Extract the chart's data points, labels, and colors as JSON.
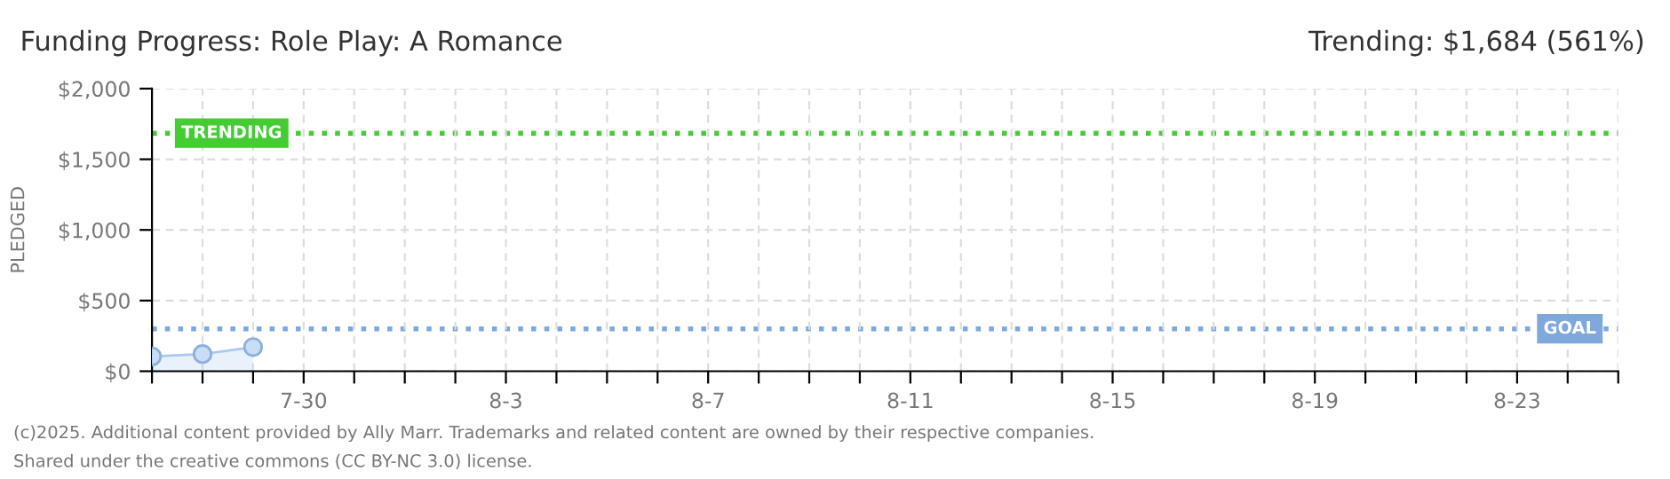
{
  "chart_data": {
    "type": "area",
    "title": "Funding Progress: Role Play: A Romance",
    "subtitle": "Trending: $1,684 (561%)",
    "ylabel": "PLEDGED",
    "x": [
      "2025-07-27",
      "2025-07-28",
      "2025-07-29"
    ],
    "series": [
      {
        "color": "#a9c9ee",
        "values": [
          104,
          121,
          171
        ]
      }
    ],
    "marker": "circle",
    "grid": true,
    "legend": false,
    "xlim": [
      "2025-07-27",
      "2025-08-25"
    ],
    "xticks": [
      {
        "value": "2025-07-27",
        "label": null
      },
      {
        "value": "2025-07-28",
        "label": null
      },
      {
        "value": "2025-07-29",
        "label": null
      },
      {
        "value": "2025-07-30",
        "label": "7-30"
      },
      {
        "value": "2025-07-31",
        "label": null
      },
      {
        "value": "2025-08-01",
        "label": null
      },
      {
        "value": "2025-08-02",
        "label": null
      },
      {
        "value": "2025-08-03",
        "label": "8-3"
      },
      {
        "value": "2025-08-04",
        "label": null
      },
      {
        "value": "2025-08-05",
        "label": null
      },
      {
        "value": "2025-08-06",
        "label": null
      },
      {
        "value": "2025-08-07",
        "label": "8-7"
      },
      {
        "value": "2025-08-08",
        "label": null
      },
      {
        "value": "2025-08-09",
        "label": null
      },
      {
        "value": "2025-08-10",
        "label": null
      },
      {
        "value": "2025-08-11",
        "label": "8-11"
      },
      {
        "value": "2025-08-12",
        "label": null
      },
      {
        "value": "2025-08-13",
        "label": null
      },
      {
        "value": "2025-08-14",
        "label": null
      },
      {
        "value": "2025-08-15",
        "label": "8-15"
      },
      {
        "value": "2025-08-16",
        "label": null
      },
      {
        "value": "2025-08-17",
        "label": null
      },
      {
        "value": "2025-08-18",
        "label": null
      },
      {
        "value": "2025-08-19",
        "label": "8-19"
      },
      {
        "value": "2025-08-20",
        "label": null
      },
      {
        "value": "2025-08-21",
        "label": null
      },
      {
        "value": "2025-08-22",
        "label": null
      },
      {
        "value": "2025-08-23",
        "label": "8-23"
      },
      {
        "value": "2025-08-24",
        "label": null
      },
      {
        "value": "2025-08-25",
        "label": null
      }
    ],
    "ylim": [
      0,
      2000
    ],
    "yticks": [
      {
        "value": 0,
        "label": "$0"
      },
      {
        "value": 500,
        "label": "$500"
      },
      {
        "value": 1000,
        "label": "$1,000"
      },
      {
        "value": 1500,
        "label": "$1,500"
      },
      {
        "value": 2000,
        "label": "$2,000"
      }
    ],
    "ref_lines": [
      {
        "axis": "y",
        "value": 1684,
        "label": "TRENDING",
        "color": "#44cc33",
        "line_style": "dotted"
      },
      {
        "axis": "y",
        "value": 300,
        "label": "GOAL",
        "color": "#7fa8dc",
        "line_style": "dotted"
      }
    ],
    "annotations": [
      "(c)2025. Additional content provided by Ally Marr. Trademarks and related content are owned by their respective companies.",
      "Shared under the creative commons (CC BY-NC 3.0) license."
    ]
  }
}
